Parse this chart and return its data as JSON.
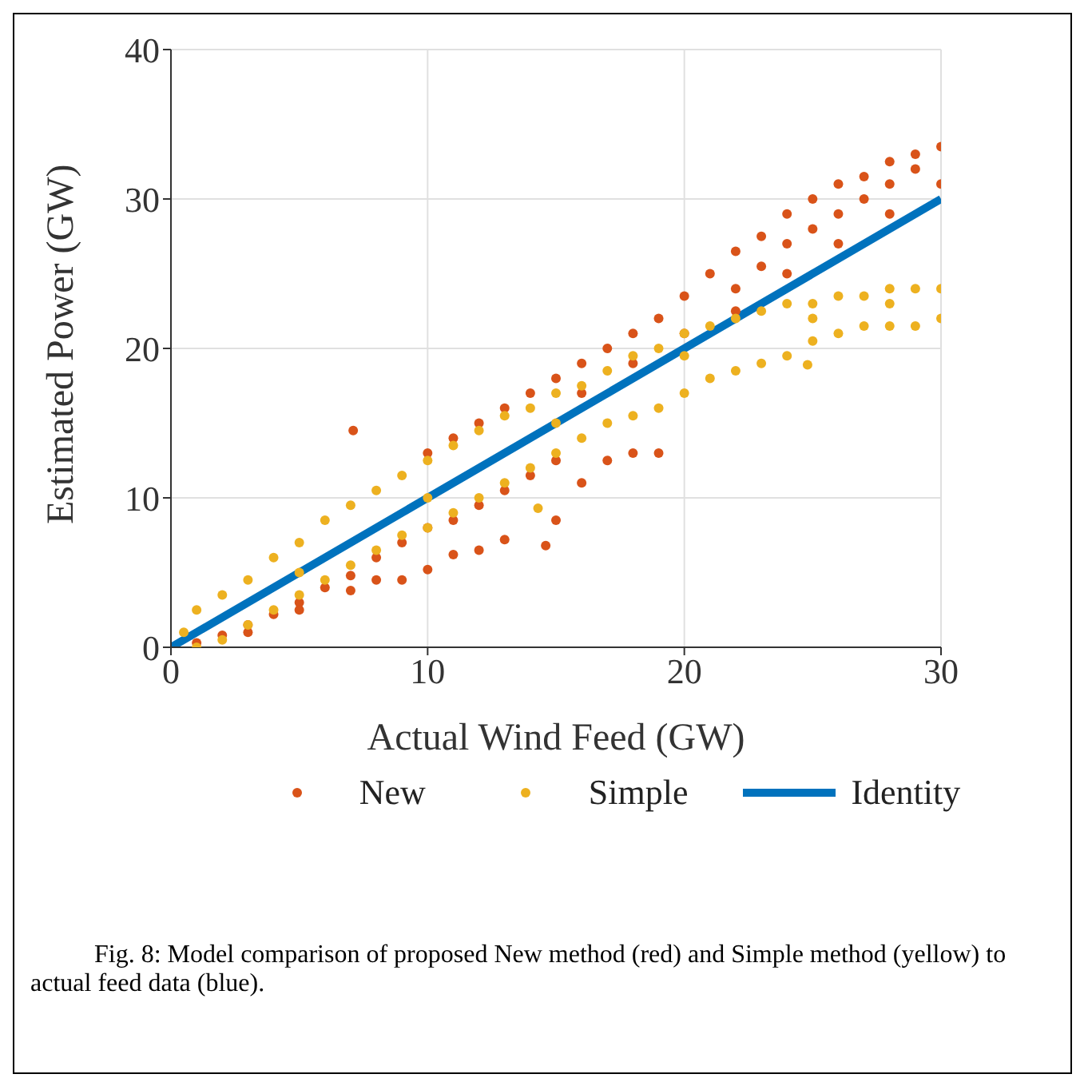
{
  "chart_data": {
    "type": "scatter",
    "xlabel": "Actual Wind Feed (GW)",
    "ylabel": "Estimated Power (GW)",
    "xlim": [
      0,
      30
    ],
    "xticks": [
      0,
      10,
      20,
      30
    ],
    "ylim": [
      0,
      40
    ],
    "yticks": [
      0,
      10,
      20,
      30,
      40
    ],
    "grid": true,
    "legend": "bottom",
    "annotations": [
      "Fig. 8: Model comparison of proposed New method (red) and Simple method (yellow) to actual feed data (blue)."
    ],
    "series": [
      {
        "name": "New",
        "marker": "circle",
        "color": "#d95319",
        "x": [
          1,
          2,
          3,
          4,
          5,
          6,
          7,
          8,
          9,
          10,
          11,
          12,
          13,
          14,
          15,
          3,
          5,
          7,
          8,
          9,
          10,
          11,
          12,
          13,
          14.6,
          15,
          16,
          17,
          18,
          19,
          7.1,
          10,
          11,
          12,
          13,
          14,
          15,
          16,
          17,
          18,
          19,
          20,
          21,
          22,
          23,
          24,
          25,
          26,
          27,
          28,
          29,
          30,
          16,
          18,
          20,
          22,
          24,
          26,
          28,
          30,
          22,
          24,
          26,
          28,
          23,
          25,
          27,
          29
        ],
        "values": [
          0.3,
          0.8,
          1.5,
          2.2,
          3,
          4,
          4.8,
          6,
          7,
          8,
          8.5,
          9.5,
          10.5,
          11.5,
          12.5,
          1,
          2.5,
          3.8,
          4.5,
          4.5,
          5.2,
          6.2,
          6.5,
          7.2,
          6.8,
          8.5,
          11,
          12.5,
          13,
          13,
          14.5,
          13,
          14,
          15,
          16,
          17,
          18,
          19,
          20,
          21,
          22,
          23.5,
          25,
          26.5,
          27.5,
          29,
          30,
          31,
          31.5,
          32.5,
          33,
          33.5,
          17,
          19,
          21,
          22.5,
          25,
          27,
          29,
          31,
          24,
          27,
          29,
          31,
          25.5,
          28,
          30,
          32
        ]
      },
      {
        "name": "Simple",
        "marker": "circle",
        "color": "#edb120",
        "x": [
          0.5,
          1,
          2,
          3,
          4,
          5,
          6,
          7,
          8,
          9,
          10,
          11,
          12,
          13,
          14,
          15,
          16,
          17,
          18,
          19,
          20,
          21,
          22,
          23,
          24,
          25,
          26,
          27,
          28,
          29,
          30,
          1,
          2,
          3,
          4,
          5,
          6,
          7,
          8,
          9,
          10,
          11,
          12,
          13,
          14,
          15,
          16,
          17,
          18,
          19,
          20,
          21,
          22,
          23,
          24,
          25,
          26,
          27,
          28,
          29,
          30,
          5,
          10,
          15,
          20,
          25,
          28,
          14.3,
          24.8
        ],
        "values": [
          1,
          2.5,
          3.5,
          4.5,
          6,
          7,
          8.5,
          9.5,
          10.5,
          11.5,
          12.5,
          13.5,
          14.5,
          15.5,
          16,
          17,
          17.5,
          18.5,
          19.5,
          20,
          21,
          21.5,
          22,
          22.5,
          23,
          23,
          23.5,
          23.5,
          24,
          24,
          24,
          0,
          0.5,
          1.5,
          2.5,
          3.5,
          4.5,
          5.5,
          6.5,
          7.5,
          8,
          9,
          10,
          11,
          12,
          13,
          14,
          15,
          15.5,
          16,
          17,
          18,
          18.5,
          19,
          19.5,
          20.5,
          21,
          21.5,
          21.5,
          21.5,
          22,
          5,
          10,
          15,
          19.5,
          22,
          23,
          9.3,
          18.9
        ]
      },
      {
        "name": "Identity",
        "type": "line",
        "color": "#0072bd",
        "line_style": "solid",
        "x": [
          0,
          30
        ],
        "values": [
          0,
          30
        ]
      }
    ]
  }
}
